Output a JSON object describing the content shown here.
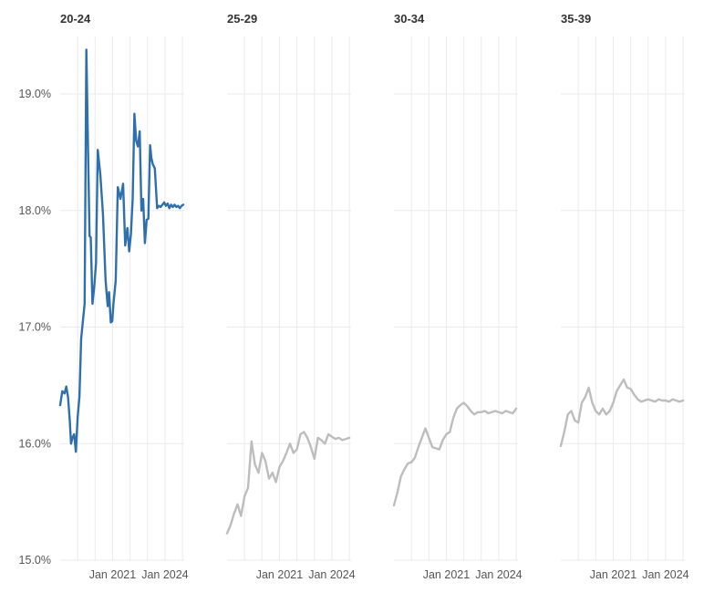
{
  "chart_data": {
    "type": "line",
    "layout": "small-multiples",
    "highlight_color": "#2f6fad",
    "muted_color": "#bdbdbd",
    "y_ticks": [
      15.0,
      16.0,
      17.0,
      18.0,
      19.0
    ],
    "y_tick_labels": [
      "15.0%",
      "16.0%",
      "17.0%",
      "18.0%",
      "19.0%"
    ],
    "ylim": [
      15.0,
      19.6
    ],
    "xlim": [
      2018.0,
      2025.1
    ],
    "x_grid": [
      2019,
      2020,
      2021,
      2022,
      2023,
      2024,
      2025
    ],
    "x_ticks": [
      {
        "label": "Jan 2021",
        "value": 2021.0
      },
      {
        "label": "Jan 2024",
        "value": 2024.0
      }
    ],
    "grid": true,
    "panels": [
      {
        "title": "20-24",
        "highlighted": true,
        "x": [
          2018.0,
          2018.12,
          2018.25,
          2018.35,
          2018.45,
          2018.55,
          2018.62,
          2018.7,
          2018.8,
          2018.9,
          2019.0,
          2019.1,
          2019.2,
          2019.3,
          2019.4,
          2019.5,
          2019.6,
          2019.68,
          2019.75,
          2019.85,
          2019.95,
          2020.05,
          2020.15,
          2020.3,
          2020.45,
          2020.6,
          2020.72,
          2020.8,
          2020.9,
          2020.98,
          2021.05,
          2021.18,
          2021.3,
          2021.45,
          2021.6,
          2021.72,
          2021.85,
          2021.95,
          2022.05,
          2022.15,
          2022.25,
          2022.35,
          2022.45,
          2022.55,
          2022.65,
          2022.75,
          2022.85,
          2022.95,
          2023.05,
          2023.15,
          2023.22,
          2023.3,
          2023.42,
          2023.55,
          2023.65,
          2023.75,
          2023.85,
          2023.95,
          2024.05,
          2024.15,
          2024.25,
          2024.35,
          2024.45,
          2024.55,
          2024.65,
          2024.75,
          2024.85,
          2024.95,
          2025.05
        ],
        "values": [
          16.33,
          16.45,
          16.43,
          16.49,
          16.4,
          16.2,
          16.0,
          16.05,
          16.08,
          15.93,
          16.23,
          16.4,
          16.9,
          17.05,
          17.2,
          19.38,
          18.5,
          17.78,
          17.77,
          17.2,
          17.35,
          17.55,
          18.52,
          18.3,
          17.97,
          17.4,
          17.18,
          17.3,
          17.04,
          17.05,
          17.2,
          17.4,
          18.2,
          18.1,
          18.23,
          17.7,
          17.85,
          17.65,
          17.8,
          18.1,
          18.83,
          18.6,
          18.55,
          18.68,
          18.0,
          18.1,
          17.72,
          17.92,
          17.93,
          18.56,
          18.45,
          18.4,
          18.36,
          18.02,
          18.04,
          18.03,
          18.05,
          18.07,
          18.04,
          18.06,
          18.02,
          18.05,
          18.03,
          18.05,
          18.03,
          18.04,
          18.02,
          18.04,
          18.05
        ]
      },
      {
        "title": "25-29",
        "highlighted": false,
        "x": [
          2018.0,
          2018.2,
          2018.4,
          2018.6,
          2018.8,
          2019.0,
          2019.2,
          2019.4,
          2019.6,
          2019.8,
          2020.0,
          2020.2,
          2020.4,
          2020.6,
          2020.8,
          2021.0,
          2021.2,
          2021.4,
          2021.6,
          2021.8,
          2022.0,
          2022.2,
          2022.4,
          2022.6,
          2022.8,
          2023.0,
          2023.2,
          2023.4,
          2023.6,
          2023.8,
          2024.0,
          2024.2,
          2024.4,
          2024.6,
          2024.8,
          2025.0
        ],
        "values": [
          15.23,
          15.3,
          15.4,
          15.48,
          15.38,
          15.55,
          15.62,
          16.02,
          15.82,
          15.75,
          15.92,
          15.85,
          15.7,
          15.75,
          15.67,
          15.8,
          15.85,
          15.92,
          16.0,
          15.92,
          15.95,
          16.08,
          16.1,
          16.05,
          15.97,
          15.87,
          16.05,
          16.03,
          16.0,
          16.08,
          16.06,
          16.04,
          16.05,
          16.03,
          16.04,
          16.05
        ]
      },
      {
        "title": "30-34",
        "highlighted": false,
        "x": [
          2018.0,
          2018.2,
          2018.4,
          2018.6,
          2018.8,
          2019.0,
          2019.2,
          2019.4,
          2019.6,
          2019.8,
          2020.0,
          2020.2,
          2020.4,
          2020.6,
          2020.8,
          2021.0,
          2021.2,
          2021.4,
          2021.6,
          2021.8,
          2022.0,
          2022.2,
          2022.4,
          2022.6,
          2022.8,
          2023.0,
          2023.2,
          2023.4,
          2023.6,
          2023.8,
          2024.0,
          2024.2,
          2024.4,
          2024.6,
          2024.8,
          2025.0
        ],
        "values": [
          15.47,
          15.58,
          15.72,
          15.78,
          15.83,
          15.84,
          15.88,
          15.97,
          16.05,
          16.13,
          16.05,
          15.97,
          15.96,
          15.95,
          16.03,
          16.08,
          16.1,
          16.22,
          16.3,
          16.33,
          16.35,
          16.32,
          16.28,
          16.25,
          16.27,
          16.27,
          16.28,
          16.26,
          16.27,
          16.28,
          16.27,
          16.26,
          16.28,
          16.27,
          16.26,
          16.3
        ]
      },
      {
        "title": "35-39",
        "highlighted": false,
        "x": [
          2018.0,
          2018.2,
          2018.4,
          2018.6,
          2018.8,
          2019.0,
          2019.2,
          2019.4,
          2019.6,
          2019.8,
          2020.0,
          2020.2,
          2020.4,
          2020.6,
          2020.8,
          2021.0,
          2021.2,
          2021.4,
          2021.6,
          2021.8,
          2022.0,
          2022.2,
          2022.4,
          2022.6,
          2022.8,
          2023.0,
          2023.2,
          2023.4,
          2023.6,
          2023.8,
          2024.0,
          2024.2,
          2024.4,
          2024.6,
          2024.8,
          2025.0
        ],
        "values": [
          15.98,
          16.1,
          16.25,
          16.28,
          16.2,
          16.18,
          16.35,
          16.4,
          16.48,
          16.35,
          16.28,
          16.25,
          16.3,
          16.25,
          16.28,
          16.35,
          16.45,
          16.5,
          16.55,
          16.48,
          16.47,
          16.42,
          16.38,
          16.36,
          16.37,
          16.38,
          16.37,
          16.36,
          16.38,
          16.37,
          16.37,
          16.36,
          16.38,
          16.37,
          16.36,
          16.37
        ]
      }
    ]
  }
}
